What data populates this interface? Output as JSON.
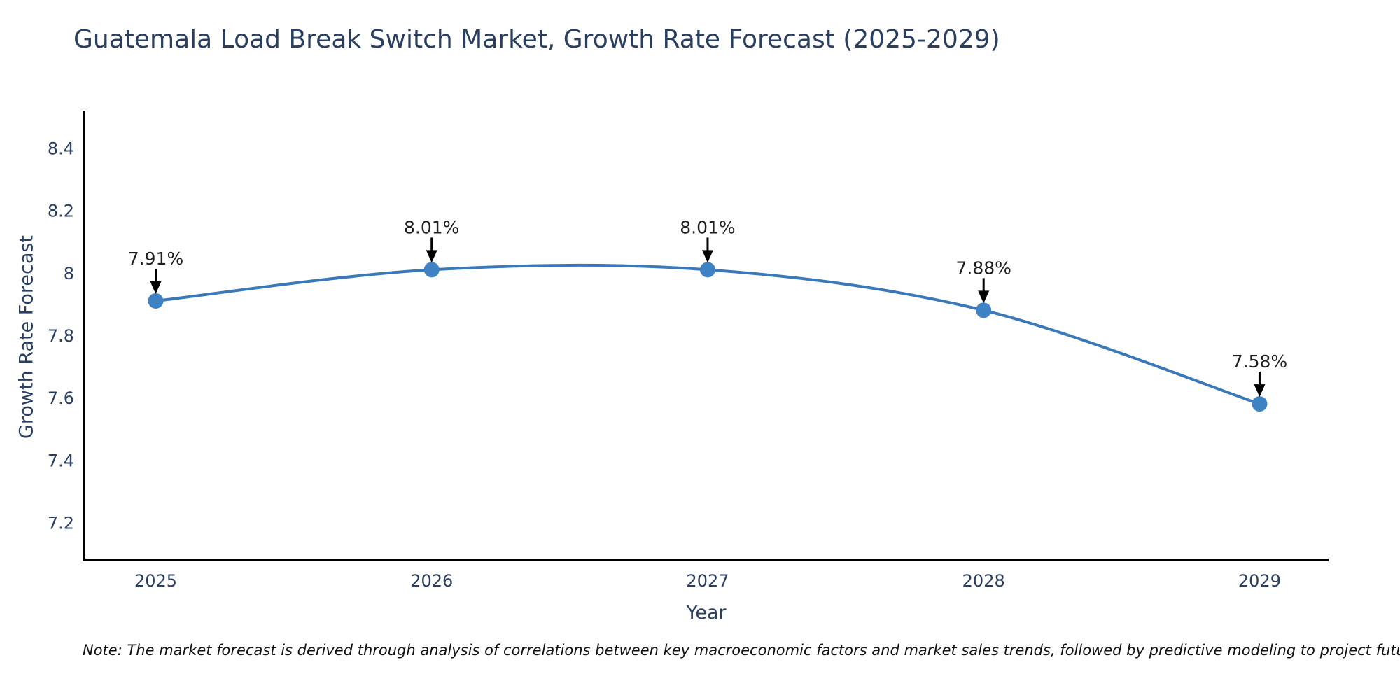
{
  "header": {
    "title": "Guatemala Load Break Switch Market, Growth Rate Forecast (2025-2029)"
  },
  "footnote": "Note: The market forecast is derived through analysis of correlations between key macroeconomic factors and market sales trends, followed by predictive modeling to project future sales",
  "chart_data": {
    "type": "line",
    "title": "Guatemala Load Break Switch Market, Growth Rate Forecast (2025-2029)",
    "xlabel": "Year",
    "ylabel": "Growth Rate Forecast",
    "x": [
      2025,
      2026,
      2027,
      2028,
      2029
    ],
    "values": [
      7.91,
      8.01,
      8.01,
      7.88,
      7.58
    ],
    "point_labels": [
      "7.91%",
      "8.01%",
      "8.01%",
      "7.88%",
      "7.58%"
    ],
    "xtick_labels": [
      "2025",
      "2026",
      "2027",
      "2028",
      "2029"
    ],
    "yticks": [
      8.4,
      8.2,
      8.0,
      7.8,
      7.6,
      7.4,
      7.2
    ],
    "ytick_labels": [
      "8.4",
      "8.2",
      "8",
      "7.8",
      "7.6",
      "7.4",
      "7.2"
    ],
    "xlim": [
      2024.74,
      2029.25
    ],
    "ylim": [
      7.08,
      8.52
    ],
    "grid": false,
    "legend": "none",
    "line_shape": "spline",
    "line_color": "#3a78b8",
    "marker_color": "#3f82c4",
    "axis_line_color": "#000000",
    "tick_text_color": "#2a3f5f",
    "annotation_text_color": "#1e1e1e",
    "annotation_arrow_color": "#000000",
    "background_color": "#ffffff"
  }
}
